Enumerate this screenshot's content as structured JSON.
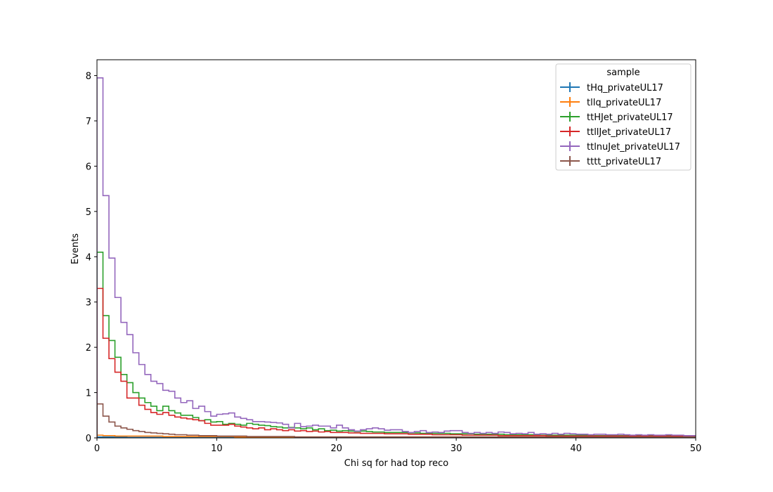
{
  "chart_data": {
    "type": "line",
    "style": "step-histogram",
    "xlabel": "Chi sq for had top reco",
    "ylabel": "Events",
    "xlim": [
      0,
      50
    ],
    "ylim": [
      0,
      8.35
    ],
    "xticks": [
      "0",
      "10",
      "20",
      "30",
      "40",
      "50"
    ],
    "yticks": [
      "0",
      "1",
      "2",
      "3",
      "4",
      "5",
      "6",
      "7",
      "8"
    ],
    "grid": false,
    "bin_width": 0.5,
    "legend": {
      "title": "sample",
      "position": "top-right"
    },
    "series": [
      {
        "name": "tHq_privateUL17",
        "color": "#1f77b4",
        "values": [
          0.02,
          0.02,
          0.02,
          0.02,
          0.02,
          0.01,
          0.01,
          0.01,
          0.01,
          0.01,
          0.01,
          0.01,
          0.01,
          0.01,
          0.01,
          0.01,
          0.01,
          0.01,
          0.01,
          0.01,
          0.01,
          0.01,
          0.01,
          0.01,
          0.01,
          0.01,
          0.01,
          0.01,
          0.01,
          0.01,
          0.01,
          0.01,
          0.01,
          0.01,
          0.01,
          0.01,
          0.01,
          0.01,
          0.01,
          0.01,
          0.01,
          0.01,
          0.01,
          0.01,
          0.01,
          0.01,
          0.01,
          0.01,
          0.01,
          0.01,
          0.01,
          0.01,
          0.01,
          0.01,
          0.01,
          0.01,
          0.01,
          0.01,
          0.01,
          0.01,
          0.01,
          0.01,
          0.01,
          0.01,
          0.01,
          0.01,
          0.01,
          0.01,
          0.01,
          0.01,
          0.01,
          0.01,
          0.01,
          0.01,
          0.01,
          0.01,
          0.01,
          0.01,
          0.01,
          0.01,
          0.01,
          0.01,
          0.01,
          0.01,
          0.01,
          0.01,
          0.01,
          0.01,
          0.01,
          0.01,
          0.01,
          0.01,
          0.01,
          0.01,
          0.01,
          0.01,
          0.01,
          0.01,
          0.01,
          0.01
        ]
      },
      {
        "name": "tllq_privateUL17",
        "color": "#ff7f0e",
        "values": [
          0.06,
          0.05,
          0.05,
          0.04,
          0.04,
          0.04,
          0.04,
          0.04,
          0.04,
          0.04,
          0.04,
          0.03,
          0.03,
          0.03,
          0.03,
          0.03,
          0.03,
          0.03,
          0.03,
          0.03,
          0.03,
          0.03,
          0.03,
          0.02,
          0.02,
          0.02,
          0.02,
          0.02,
          0.02,
          0.02,
          0.02,
          0.02,
          0.02,
          0.02,
          0.02,
          0.02,
          0.02,
          0.02,
          0.02,
          0.02,
          0.02,
          0.02,
          0.02,
          0.02,
          0.02,
          0.02,
          0.02,
          0.02,
          0.02,
          0.02,
          0.02,
          0.02,
          0.02,
          0.02,
          0.02,
          0.02,
          0.02,
          0.02,
          0.02,
          0.02,
          0.02,
          0.02,
          0.02,
          0.02,
          0.02,
          0.02,
          0.02,
          0.02,
          0.02,
          0.02,
          0.02,
          0.02,
          0.02,
          0.02,
          0.02,
          0.02,
          0.02,
          0.02,
          0.02,
          0.02,
          0.02,
          0.02,
          0.02,
          0.02,
          0.02,
          0.02,
          0.02,
          0.02,
          0.02,
          0.02,
          0.02,
          0.02,
          0.02,
          0.02,
          0.02,
          0.02,
          0.02,
          0.02,
          0.02,
          0.02
        ]
      },
      {
        "name": "ttHJet_privateUL17",
        "color": "#2ca02c",
        "values": [
          4.1,
          2.7,
          2.15,
          1.78,
          1.4,
          1.22,
          1.0,
          0.88,
          0.78,
          0.7,
          0.6,
          0.7,
          0.6,
          0.55,
          0.5,
          0.5,
          0.45,
          0.38,
          0.4,
          0.35,
          0.36,
          0.3,
          0.32,
          0.3,
          0.28,
          0.32,
          0.3,
          0.28,
          0.27,
          0.25,
          0.24,
          0.22,
          0.23,
          0.22,
          0.2,
          0.22,
          0.18,
          0.2,
          0.16,
          0.17,
          0.15,
          0.16,
          0.15,
          0.14,
          0.15,
          0.14,
          0.13,
          0.13,
          0.12,
          0.12,
          0.12,
          0.12,
          0.11,
          0.11,
          0.1,
          0.1,
          0.1,
          0.1,
          0.1,
          0.09,
          0.09,
          0.09,
          0.09,
          0.08,
          0.08,
          0.08,
          0.08,
          0.08,
          0.07,
          0.07,
          0.07,
          0.07,
          0.07,
          0.07,
          0.06,
          0.06,
          0.06,
          0.06,
          0.06,
          0.06,
          0.06,
          0.06,
          0.05,
          0.05,
          0.05,
          0.05,
          0.05,
          0.05,
          0.05,
          0.05,
          0.05,
          0.05,
          0.05,
          0.05,
          0.05,
          0.05,
          0.05,
          0.05,
          0.05,
          0.05
        ]
      },
      {
        "name": "ttllJet_privateUL17",
        "color": "#d62728",
        "values": [
          3.3,
          2.2,
          1.75,
          1.45,
          1.25,
          0.88,
          0.88,
          0.72,
          0.63,
          0.56,
          0.52,
          0.56,
          0.5,
          0.46,
          0.44,
          0.42,
          0.4,
          0.38,
          0.32,
          0.28,
          0.28,
          0.28,
          0.3,
          0.26,
          0.24,
          0.22,
          0.2,
          0.22,
          0.18,
          0.2,
          0.18,
          0.16,
          0.18,
          0.15,
          0.16,
          0.14,
          0.15,
          0.13,
          0.14,
          0.12,
          0.12,
          0.12,
          0.11,
          0.11,
          0.1,
          0.1,
          0.1,
          0.1,
          0.09,
          0.09,
          0.09,
          0.09,
          0.08,
          0.08,
          0.08,
          0.08,
          0.07,
          0.07,
          0.07,
          0.07,
          0.07,
          0.06,
          0.06,
          0.06,
          0.06,
          0.06,
          0.06,
          0.05,
          0.05,
          0.05,
          0.05,
          0.05,
          0.05,
          0.05,
          0.05,
          0.04,
          0.04,
          0.04,
          0.04,
          0.04,
          0.04,
          0.04,
          0.04,
          0.04,
          0.04,
          0.04,
          0.04,
          0.04,
          0.04,
          0.04,
          0.04,
          0.04,
          0.04,
          0.04,
          0.04,
          0.04,
          0.04,
          0.04,
          0.04,
          0.04
        ]
      },
      {
        "name": "ttlnuJet_privateUL17",
        "color": "#9467bd",
        "values": [
          7.95,
          5.35,
          3.97,
          3.1,
          2.55,
          2.28,
          1.88,
          1.62,
          1.4,
          1.25,
          1.2,
          1.05,
          1.03,
          0.88,
          0.78,
          0.82,
          0.65,
          0.7,
          0.58,
          0.48,
          0.52,
          0.53,
          0.55,
          0.46,
          0.43,
          0.4,
          0.36,
          0.36,
          0.35,
          0.34,
          0.33,
          0.3,
          0.22,
          0.32,
          0.25,
          0.26,
          0.28,
          0.26,
          0.26,
          0.22,
          0.28,
          0.22,
          0.18,
          0.15,
          0.18,
          0.2,
          0.22,
          0.2,
          0.17,
          0.18,
          0.18,
          0.14,
          0.12,
          0.14,
          0.16,
          0.12,
          0.13,
          0.12,
          0.15,
          0.16,
          0.16,
          0.12,
          0.1,
          0.12,
          0.1,
          0.12,
          0.1,
          0.13,
          0.12,
          0.09,
          0.1,
          0.09,
          0.12,
          0.08,
          0.09,
          0.08,
          0.1,
          0.08,
          0.1,
          0.09,
          0.08,
          0.08,
          0.07,
          0.08,
          0.08,
          0.07,
          0.07,
          0.08,
          0.07,
          0.06,
          0.07,
          0.06,
          0.07,
          0.06,
          0.06,
          0.07,
          0.06,
          0.06,
          0.05,
          0.05
        ]
      },
      {
        "name": "tttt_privateUL17",
        "color": "#8c564b",
        "values": [
          0.75,
          0.48,
          0.35,
          0.26,
          0.22,
          0.19,
          0.16,
          0.14,
          0.12,
          0.11,
          0.1,
          0.09,
          0.08,
          0.07,
          0.07,
          0.06,
          0.06,
          0.05,
          0.05,
          0.05,
          0.04,
          0.04,
          0.04,
          0.04,
          0.04,
          0.03,
          0.03,
          0.03,
          0.03,
          0.03,
          0.03,
          0.03,
          0.03,
          0.02,
          0.02,
          0.02,
          0.02,
          0.02,
          0.02,
          0.02,
          0.02,
          0.02,
          0.02,
          0.02,
          0.02,
          0.02,
          0.02,
          0.02,
          0.02,
          0.02,
          0.02,
          0.02,
          0.02,
          0.02,
          0.02,
          0.02,
          0.02,
          0.02,
          0.02,
          0.02,
          0.02,
          0.02,
          0.02,
          0.02,
          0.02,
          0.02,
          0.02,
          0.02,
          0.02,
          0.02,
          0.02,
          0.02,
          0.02,
          0.02,
          0.02,
          0.02,
          0.02,
          0.02,
          0.02,
          0.02,
          0.02,
          0.02,
          0.02,
          0.02,
          0.02,
          0.02,
          0.02,
          0.02,
          0.02,
          0.02,
          0.02,
          0.02,
          0.02,
          0.02,
          0.02,
          0.02,
          0.02,
          0.02,
          0.02,
          0.02
        ]
      }
    ]
  }
}
